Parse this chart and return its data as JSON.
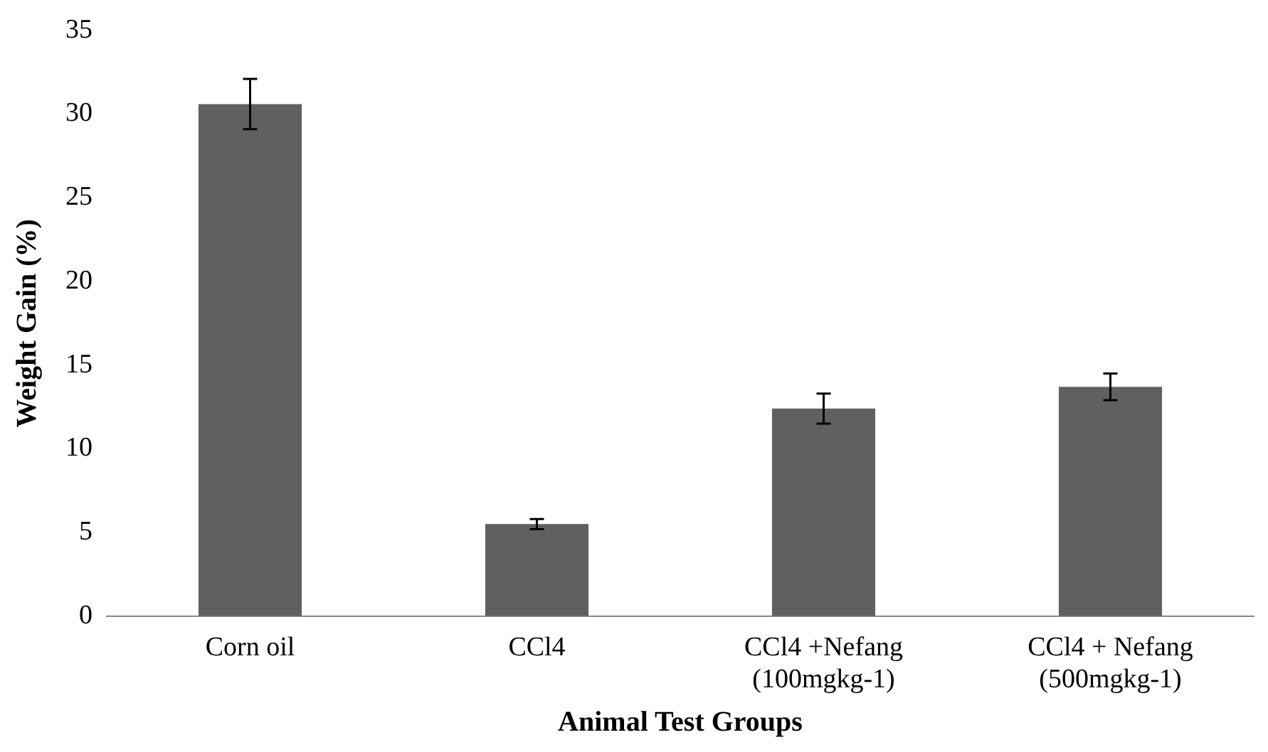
{
  "chart_data": {
    "type": "bar",
    "xlabel": "Animal Test Groups",
    "ylabel": "Weight Gain (%)",
    "categories": [
      "Corn oil",
      "CCl4",
      "CCl4 +Nefang\n(100mgkg-1)",
      "CCl4 + Nefang\n(500mgkg-1)"
    ],
    "values": [
      30.6,
      5.5,
      12.4,
      13.7
    ],
    "color": "#606060",
    "errors": [
      1.5,
      0.3,
      0.9,
      0.8
    ],
    "ylim": [
      0,
      35
    ],
    "yticks": [
      0,
      5,
      10,
      15,
      20,
      25,
      30,
      35
    ],
    "grid": false,
    "legend": false
  }
}
